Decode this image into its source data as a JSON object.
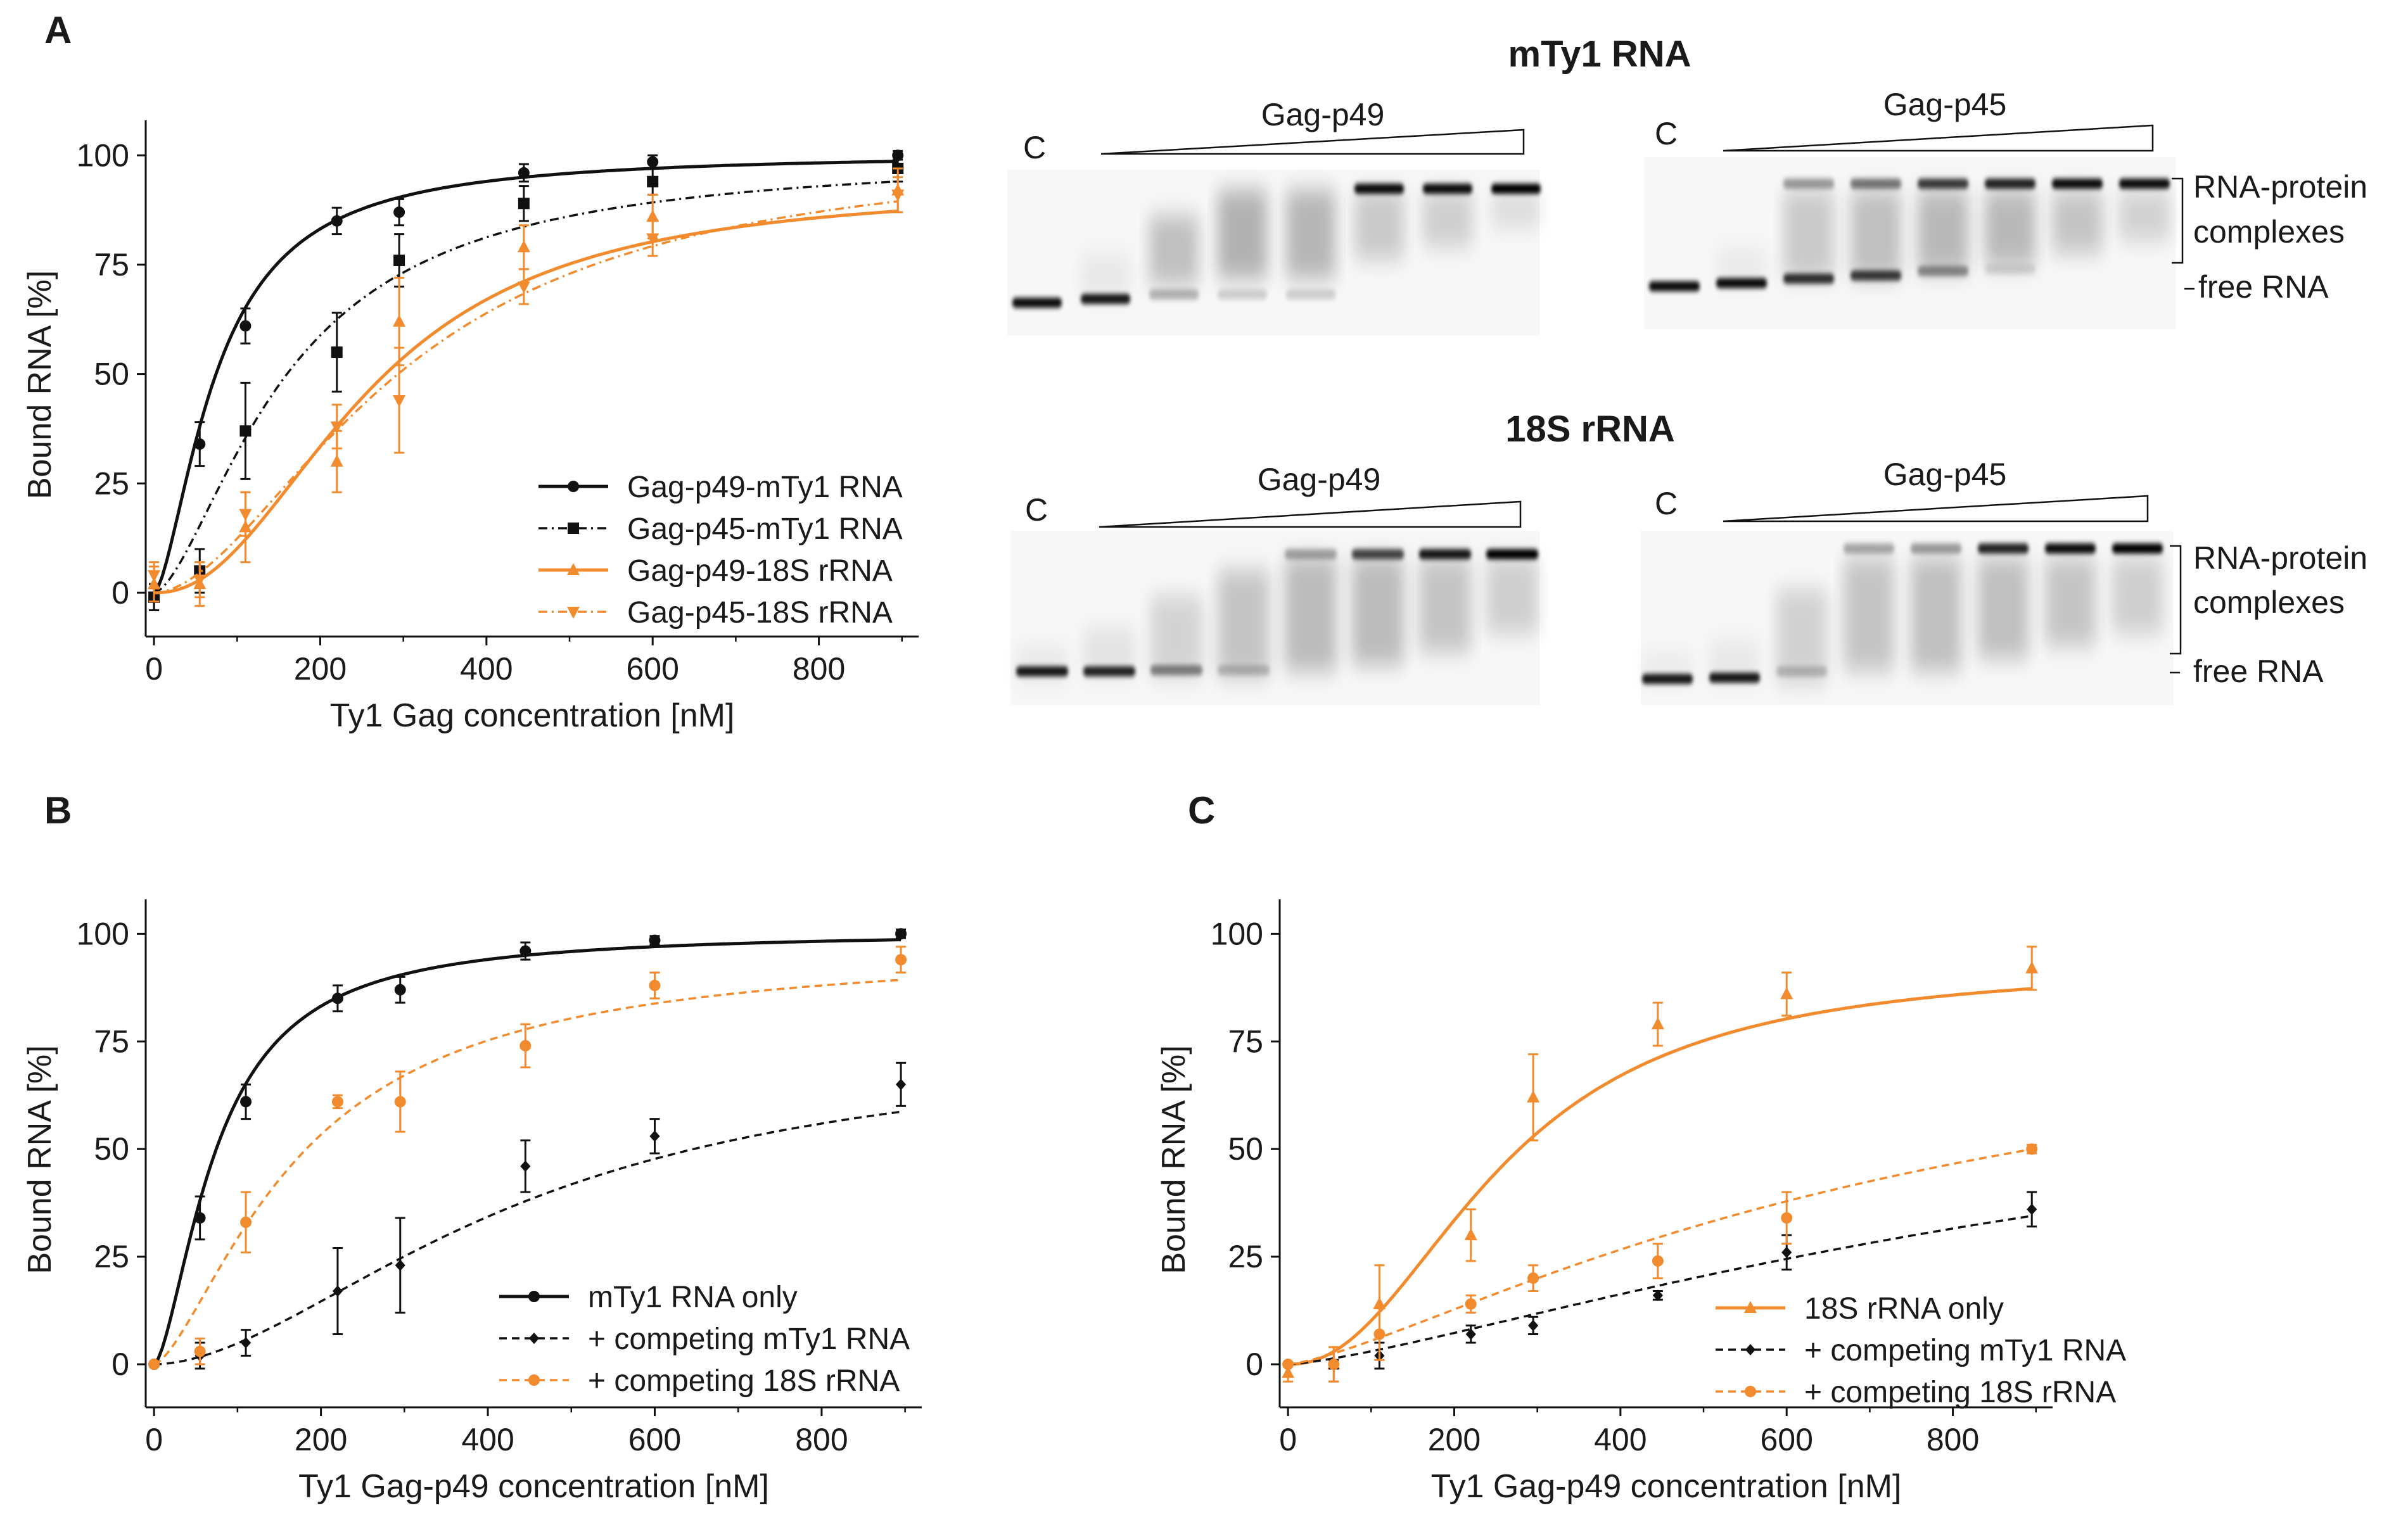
{
  "panel_labels": {
    "a": "A",
    "b": "B",
    "c": "C"
  },
  "gels": {
    "mty1_title": "mTy1 RNA",
    "rrna_title": "18S rRNA",
    "control_label": "C",
    "p49_label": "Gag-p49",
    "p45_label": "Gag-p45",
    "complex_label_line1": "RNA-protein",
    "complex_label_line2": "complexes",
    "free_label": "free RNA"
  },
  "colors": {
    "black": "#111111",
    "orange": "#f28a2e"
  },
  "chart_data": [
    {
      "id": "A",
      "type": "line",
      "xlabel": "Ty1 Gag concentration [nM]",
      "ylabel": "Bound RNA [%]",
      "xlim": [
        -10,
        920
      ],
      "ylim": [
        -10,
        108
      ],
      "xticks": [
        0,
        200,
        400,
        600,
        800
      ],
      "yticks": [
        0,
        25,
        50,
        75,
        100
      ],
      "x": [
        0,
        55,
        110,
        220,
        295,
        445,
        600,
        895
      ],
      "series": [
        {
          "name": "Gag-p49-mTy1 RNA",
          "color": "#111111",
          "dash": "solid",
          "marker": "circle",
          "values": [
            -1,
            34,
            61,
            85,
            87,
            96,
            98.5,
            100
          ],
          "errors": [
            3,
            5,
            4,
            3,
            3,
            2,
            1.5,
            1
          ],
          "fit": {
            "bmax": 100.5,
            "kd": 75,
            "n": 1.6
          }
        },
        {
          "name": "Gag-p45-mTy1 RNA",
          "color": "#111111",
          "dash": "dashdot",
          "marker": "square",
          "values": [
            -1,
            5,
            37,
            55,
            76,
            89,
            94,
            97
          ],
          "errors": [
            3,
            5,
            11,
            9,
            6,
            4,
            3,
            3
          ],
          "fit": {
            "bmax": 100,
            "kd": 160,
            "n": 1.6
          }
        },
        {
          "name": "Gag-p49-18S rRNA",
          "color": "#f28a2e",
          "dash": "solid",
          "marker": "triangle-up",
          "values": [
            2,
            2,
            15,
            30,
            62,
            79,
            86,
            92
          ],
          "errors": [
            4,
            5,
            8,
            7,
            10,
            5,
            5,
            5
          ],
          "fit": {
            "bmax": 93,
            "kd": 260,
            "n": 2.2
          }
        },
        {
          "name": "Gag-p45-18S rRNA",
          "color": "#f28a2e",
          "dash": "dashdot",
          "marker": "triangle-down",
          "values": [
            4,
            3,
            18,
            38,
            44,
            70,
            81,
            91
          ],
          "errors": [
            3,
            4,
            5,
            5,
            12,
            4,
            4,
            4
          ],
          "fit": {
            "bmax": 102,
            "kd": 300,
            "n": 1.8
          }
        }
      ]
    },
    {
      "id": "B",
      "type": "line",
      "xlabel": "Ty1 Gag-p49 concentration [nM]",
      "ylabel": "Bound RNA [%]",
      "xlim": [
        -10,
        920
      ],
      "ylim": [
        -10,
        108
      ],
      "xticks": [
        0,
        200,
        400,
        600,
        800
      ],
      "yticks": [
        0,
        25,
        50,
        75,
        100
      ],
      "x": [
        0,
        55,
        110,
        220,
        295,
        445,
        600,
        895
      ],
      "series": [
        {
          "name": "mTy1 RNA only",
          "color": "#111111",
          "dash": "solid",
          "marker": "circle",
          "values": [
            0,
            34,
            61,
            85,
            87,
            96,
            98.5,
            100
          ],
          "errors": [
            0,
            5,
            4,
            3,
            3,
            2,
            1,
            1
          ],
          "fit": {
            "bmax": 100.5,
            "kd": 75,
            "n": 1.6
          }
        },
        {
          "name": "+ competing mTy1 RNA",
          "color": "#111111",
          "dash": "dashed",
          "marker": "diamond",
          "values": [
            0,
            2,
            5,
            17,
            23,
            46,
            53,
            65
          ],
          "errors": [
            0,
            3,
            3,
            10,
            11,
            6,
            4,
            5
          ],
          "fit": {
            "bmax": 75,
            "kd": 440,
            "n": 1.8
          }
        },
        {
          "name": "+ competing 18S rRNA",
          "color": "#f28a2e",
          "dash": "dashed",
          "marker": "circle",
          "values": [
            0,
            3,
            33,
            61,
            61,
            74,
            88,
            94
          ],
          "errors": [
            0,
            3,
            7,
            1.5,
            7,
            5,
            3,
            3
          ],
          "fit": {
            "bmax": 97,
            "kd": 175,
            "n": 1.5
          }
        }
      ]
    },
    {
      "id": "C",
      "type": "line",
      "xlabel": "Ty1 Gag-p49 concentration [nM]",
      "ylabel": "Bound RNA [%]",
      "xlim": [
        -10,
        920
      ],
      "ylim": [
        -10,
        108
      ],
      "xticks": [
        0,
        200,
        400,
        600,
        800
      ],
      "yticks": [
        0,
        25,
        50,
        75,
        100
      ],
      "x": [
        0,
        55,
        110,
        220,
        295,
        445,
        600,
        895
      ],
      "series": [
        {
          "name": "18S rRNA only",
          "color": "#f28a2e",
          "dash": "solid",
          "marker": "triangle-up",
          "values": [
            -2,
            0,
            14,
            30,
            62,
            79,
            86,
            92
          ],
          "errors": [
            2,
            4,
            9,
            6,
            10,
            5,
            5,
            5
          ],
          "fit": {
            "bmax": 93,
            "kd": 260,
            "n": 2.2
          }
        },
        {
          "name": "+ competing mTy1 RNA",
          "color": "#111111",
          "dash": "dashed",
          "marker": "diamond",
          "values": [
            0,
            0,
            2,
            7,
            9,
            16,
            26,
            36
          ],
          "errors": [
            0,
            1,
            3,
            2,
            2,
            1,
            4,
            4
          ],
          "fit": {
            "bmax": 80,
            "kd": 1100,
            "n": 1.35
          }
        },
        {
          "name": "+ competing 18S rRNA",
          "color": "#f28a2e",
          "dash": "dashed",
          "marker": "circle",
          "values": [
            0,
            0,
            7,
            14,
            20,
            24,
            34,
            50
          ],
          "errors": [
            0,
            4,
            6,
            2,
            3,
            4,
            6,
            1
          ],
          "fit": {
            "bmax": 90,
            "kd": 760,
            "n": 1.35
          }
        }
      ]
    }
  ]
}
